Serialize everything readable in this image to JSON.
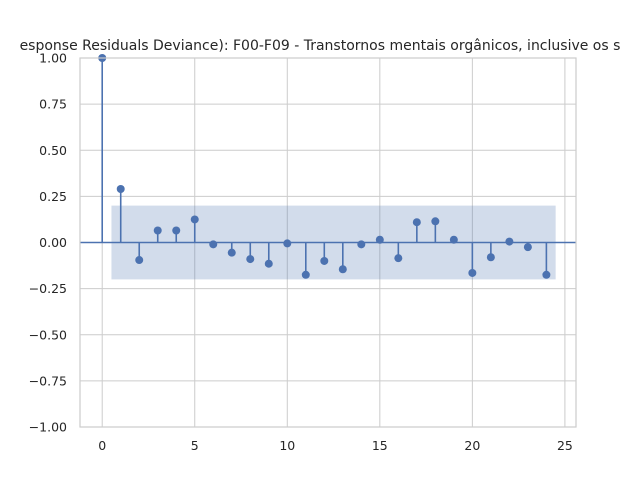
{
  "chart_data": {
    "type": "stem",
    "title": "esponse Residuals Deviance): F00-F09 - Transtornos mentais orgânicos, inclusive os s",
    "xlabel": "",
    "ylabel": "",
    "xlim": [
      -1.2,
      25.6
    ],
    "ylim": [
      -1.0,
      1.0
    ],
    "xticks": [
      0,
      5,
      10,
      15,
      20,
      25
    ],
    "yticks": [
      -1.0,
      -0.75,
      -0.5,
      -0.25,
      0.0,
      0.25,
      0.5,
      0.75,
      1.0
    ],
    "xtick_labels": [
      "0",
      "5",
      "10",
      "15",
      "20",
      "25"
    ],
    "ytick_labels": [
      "−1.00",
      "−0.75",
      "−0.50",
      "−0.25",
      "0.00",
      "0.25",
      "0.50",
      "0.75",
      "1.00"
    ],
    "grid": true,
    "lags": [
      0,
      1,
      2,
      3,
      4,
      5,
      6,
      7,
      8,
      9,
      10,
      11,
      12,
      13,
      14,
      15,
      16,
      17,
      18,
      19,
      20,
      21,
      22,
      23,
      24
    ],
    "values": [
      1.0,
      0.29,
      -0.095,
      0.065,
      0.065,
      0.125,
      -0.01,
      -0.055,
      -0.09,
      -0.115,
      -0.005,
      -0.175,
      -0.1,
      -0.145,
      -0.01,
      0.015,
      -0.085,
      0.11,
      0.115,
      0.015,
      -0.165,
      -0.08,
      0.005,
      -0.025,
      -0.175
    ],
    "confidence_band": {
      "x_range": [
        0.5,
        24.5
      ],
      "upper": 0.2,
      "lower": -0.2
    },
    "colors": {
      "stem": "#4c72b0",
      "band": "#4c72b0",
      "grid": "#cccccc",
      "baseline": "#4c72b0"
    }
  }
}
